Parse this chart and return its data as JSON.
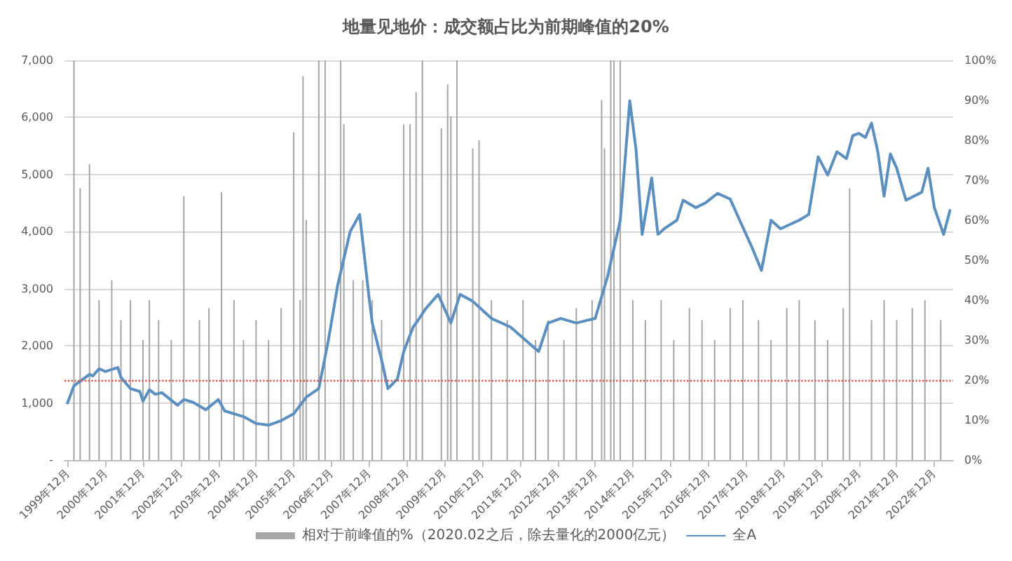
{
  "chart_data": {
    "type": "bar",
    "title": "地量见地价：成交额占比为前期峰值的20%",
    "xlim": [
      "1999-11",
      "2023-06"
    ],
    "xticks": [
      {
        "value": "1999-12",
        "label": "1999年12月"
      },
      {
        "value": "2000-12",
        "label": "2000年12月"
      },
      {
        "value": "2001-12",
        "label": "2001年12月"
      },
      {
        "value": "2002-12",
        "label": "2002年12月"
      },
      {
        "value": "2003-12",
        "label": "2003年12月"
      },
      {
        "value": "2004-12",
        "label": "2004年12月"
      },
      {
        "value": "2005-12",
        "label": "2005年12月"
      },
      {
        "value": "2006-12",
        "label": "2006年12月"
      },
      {
        "value": "2007-12",
        "label": "2007年12月"
      },
      {
        "value": "2008-12",
        "label": "2008年12月"
      },
      {
        "value": "2009-12",
        "label": "2009年12月"
      },
      {
        "value": "2010-12",
        "label": "2010年12月"
      },
      {
        "value": "2011-12",
        "label": "2011年12月"
      },
      {
        "value": "2012-12",
        "label": "2012年12月"
      },
      {
        "value": "2013-12",
        "label": "2013年12月"
      },
      {
        "value": "2014-12",
        "label": "2014年12月"
      },
      {
        "value": "2015-12",
        "label": "2015年12月"
      },
      {
        "value": "2016-12",
        "label": "2016年12月"
      },
      {
        "value": "2017-12",
        "label": "2017年12月"
      },
      {
        "value": "2018-12",
        "label": "2018年12月"
      },
      {
        "value": "2019-12",
        "label": "2019年12月"
      },
      {
        "value": "2020-12",
        "label": "2020年12月"
      },
      {
        "value": "2021-12",
        "label": "2021年12月"
      },
      {
        "value": "2022-12",
        "label": "2022年12月"
      }
    ],
    "ylim": [
      0,
      7000
    ],
    "yticks": [
      {
        "value": 0,
        "label": "-"
      },
      {
        "value": 1000,
        "label": "1,000"
      },
      {
        "value": 2000,
        "label": "2,000"
      },
      {
        "value": 3000,
        "label": "3,000"
      },
      {
        "value": 4000,
        "label": "4,000"
      },
      {
        "value": 5000,
        "label": "5,000"
      },
      {
        "value": 6000,
        "label": "6,000"
      },
      {
        "value": 7000,
        "label": "7,000"
      }
    ],
    "y2lim": [
      0,
      100
    ],
    "y2ticks": [
      {
        "value": 0,
        "label": "0%"
      },
      {
        "value": 10,
        "label": "10%"
      },
      {
        "value": 20,
        "label": "20%"
      },
      {
        "value": 30,
        "label": "30%"
      },
      {
        "value": 40,
        "label": "40%"
      },
      {
        "value": 50,
        "label": "50%"
      },
      {
        "value": 60,
        "label": "60%"
      },
      {
        "value": 70,
        "label": "70%"
      },
      {
        "value": 80,
        "label": "80%"
      },
      {
        "value": 90,
        "label": "90%"
      },
      {
        "value": 100,
        "label": "100%"
      }
    ],
    "grid": "y",
    "legend": "bottom",
    "ref_lines": [
      {
        "axis": "y2",
        "value": 20,
        "color": "#d9534f",
        "line_style": "dotted"
      }
    ],
    "series": [
      {
        "axis": "y2",
        "name": "相对于前峰值的%（2020.02之后，除去量化的2000亿元）",
        "color": "#a6a6a6",
        "x": [
          "2000-02",
          "2000-04",
          "2000-07",
          "2000-10",
          "2001-02",
          "2001-05",
          "2001-08",
          "2001-12",
          "2002-02",
          "2002-05",
          "2002-09",
          "2003-01",
          "2003-06",
          "2003-09",
          "2004-01",
          "2004-05",
          "2004-08",
          "2004-12",
          "2005-04",
          "2005-08",
          "2005-12",
          "2006-02",
          "2006-03",
          "2006-04",
          "2006-08",
          "2006-10",
          "2007-03",
          "2007-04",
          "2007-07",
          "2007-10",
          "2008-01",
          "2008-04",
          "2008-11",
          "2009-01",
          "2009-03",
          "2009-05",
          "2009-11",
          "2010-01",
          "2010-02",
          "2010-04",
          "2010-09",
          "2010-11",
          "2011-03",
          "2011-08",
          "2012-01",
          "2012-05",
          "2012-09",
          "2013-02",
          "2013-06",
          "2013-11",
          "2014-02",
          "2014-03",
          "2014-05",
          "2014-06",
          "2014-08",
          "2014-12",
          "2015-04",
          "2015-09",
          "2016-01",
          "2016-06",
          "2016-10",
          "2017-02",
          "2017-07",
          "2017-11",
          "2018-04",
          "2018-08",
          "2019-01",
          "2019-05",
          "2019-10",
          "2020-02",
          "2020-07",
          "2020-09",
          "2021-04",
          "2021-08",
          "2021-12",
          "2022-05",
          "2022-09",
          "2023-02"
        ],
        "values": [
          100,
          68,
          74,
          40,
          45,
          35,
          40,
          30,
          40,
          35,
          30,
          66,
          35,
          38,
          67,
          40,
          30,
          35,
          30,
          38,
          82,
          40,
          96,
          60,
          100,
          100,
          100,
          84,
          45,
          45,
          40,
          35,
          84,
          84,
          92,
          100,
          83,
          94,
          86,
          100,
          78,
          80,
          40,
          35,
          40,
          30,
          35,
          30,
          38,
          40,
          90,
          78,
          100,
          100,
          100,
          40,
          35,
          40,
          30,
          38,
          35,
          30,
          38,
          40,
          35,
          30,
          38,
          40,
          35,
          30,
          38,
          68,
          35,
          40,
          35,
          38,
          40,
          35
        ]
      },
      {
        "type": "line",
        "name": "全A",
        "color": "#5b8fbf",
        "marker": "none",
        "x": [
          "1999-12",
          "2000-02",
          "2000-07",
          "2000-08",
          "2000-10",
          "2000-12",
          "2001-04",
          "2001-05",
          "2001-08",
          "2001-11",
          "2001-12",
          "2002-02",
          "2002-04",
          "2002-06",
          "2002-11",
          "2003-01",
          "2003-04",
          "2003-08",
          "2003-12",
          "2004-02",
          "2004-08",
          "2004-12",
          "2005-04",
          "2005-08",
          "2005-12",
          "2006-04",
          "2006-08",
          "2006-11",
          "2007-02",
          "2007-06",
          "2007-09",
          "2007-12",
          "2008-01",
          "2008-04",
          "2008-06",
          "2008-09",
          "2008-11",
          "2009-02",
          "2009-04",
          "2009-06",
          "2009-10",
          "2010-02",
          "2010-05",
          "2010-09",
          "2011-03",
          "2011-09",
          "2012-06",
          "2012-09",
          "2013-01",
          "2013-06",
          "2013-12",
          "2014-04",
          "2014-08",
          "2014-11",
          "2015-01",
          "2015-03",
          "2015-06",
          "2015-08",
          "2015-10",
          "2016-02",
          "2016-04",
          "2016-08",
          "2016-11",
          "2017-03",
          "2017-07",
          "2017-10",
          "2018-02",
          "2018-05",
          "2018-08",
          "2018-11",
          "2019-05",
          "2019-08",
          "2019-11",
          "2020-02",
          "2020-05",
          "2020-08",
          "2020-10",
          "2020-12",
          "2021-02",
          "2021-04",
          "2021-06",
          "2021-08",
          "2021-10",
          "2021-12",
          "2022-03",
          "2022-08",
          "2022-10",
          "2022-12",
          "2023-03",
          "2023-05"
        ],
        "values": [
          1000,
          1300,
          1500,
          1470,
          1600,
          1550,
          1620,
          1450,
          1250,
          1200,
          1030,
          1230,
          1150,
          1180,
          960,
          1060,
          1010,
          880,
          1060,
          860,
          760,
          640,
          610,
          690,
          810,
          1100,
          1250,
          2090,
          3070,
          4000,
          4300,
          2850,
          2400,
          1750,
          1250,
          1420,
          1900,
          2330,
          2480,
          2650,
          2900,
          2400,
          2900,
          2780,
          2480,
          2330,
          1900,
          2400,
          2480,
          2400,
          2480,
          3220,
          4200,
          6290,
          5430,
          3950,
          4940,
          3950,
          4050,
          4200,
          4550,
          4420,
          4500,
          4670,
          4570,
          4200,
          3710,
          3320,
          4200,
          4050,
          4200,
          4300,
          5310,
          4990,
          5400,
          5280,
          5680,
          5720,
          5650,
          5900,
          5400,
          4620,
          5360,
          5110,
          4550,
          4690,
          5110,
          4420,
          3950,
          4370
        ]
      }
    ]
  }
}
